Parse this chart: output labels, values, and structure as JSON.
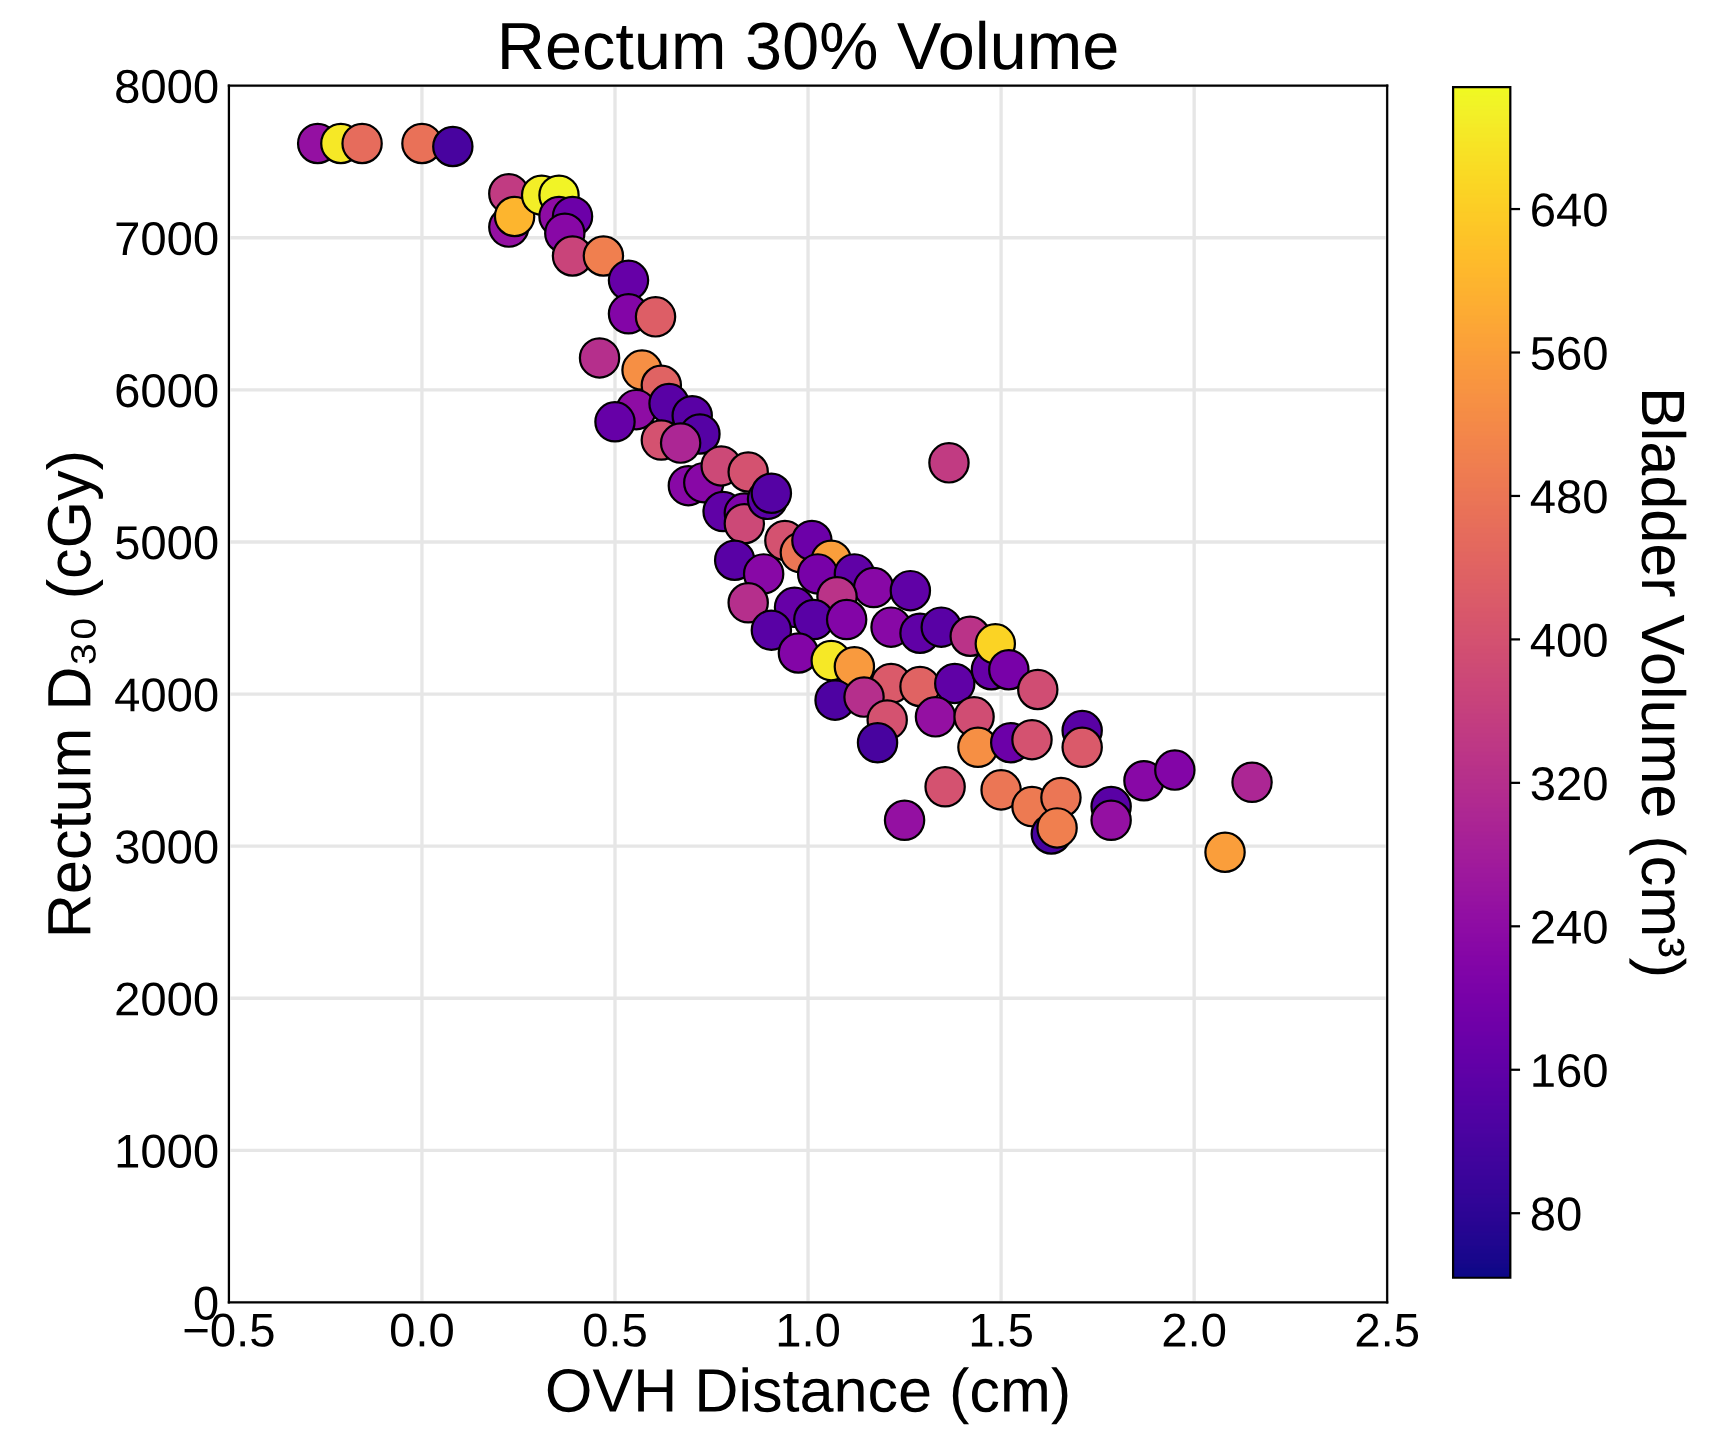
{
  "chart_data": {
    "type": "scatter",
    "title": "Rectum 30% Volume",
    "xlabel": "OVH Distance (cm)",
    "ylabel": "Rectum D₃₀ (cGy)",
    "clabel": "Bladder Volume (cm³)",
    "x": [
      -0.27,
      -0.21,
      -0.155,
      0.0,
      0.08,
      0.225,
      0.225,
      0.24,
      0.31,
      0.355,
      0.355,
      0.39,
      0.37,
      0.39,
      0.47,
      0.535,
      0.535,
      0.605,
      0.46,
      0.57,
      0.62,
      0.555,
      0.5,
      0.64,
      0.62,
      0.69,
      0.7,
      0.72,
      0.67,
      0.73,
      0.775,
      0.845,
      0.78,
      0.835,
      0.835,
      0.895,
      0.905,
      1.365,
      0.81,
      0.885,
      0.94,
      0.98,
      1.01,
      1.06,
      1.025,
      1.12,
      1.17,
      1.265,
      1.075,
      0.845,
      0.965,
      1.015,
      1.1,
      1.215,
      1.29,
      1.345,
      1.42,
      0.905,
      0.975,
      1.06,
      1.12,
      1.215,
      1.29,
      1.07,
      1.145,
      1.205,
      1.18,
      1.38,
      1.475,
      1.33,
      1.43,
      1.485,
      1.52,
      1.595,
      1.44,
      1.525,
      1.58,
      1.71,
      1.71,
      1.355,
      1.25,
      1.5,
      1.58,
      1.655,
      1.63,
      1.645,
      1.785,
      1.785,
      1.87,
      1.95,
      2.15,
      2.08
    ],
    "values": [
      7620,
      7620,
      7620,
      7620,
      7600,
      7290,
      7070,
      7140,
      7280,
      7280,
      7140,
      7140,
      7030,
      6880,
      6880,
      6720,
      6500,
      6480,
      6210,
      6130,
      6030,
      5870,
      5790,
      5910,
      5670,
      5370,
      5830,
      5710,
      5650,
      5390,
      5500,
      5460,
      5200,
      5190,
      5120,
      5280,
      5320,
      5520,
      4880,
      4790,
      5010,
      4930,
      5010,
      4880,
      4790,
      4790,
      4700,
      4680,
      4640,
      4600,
      4570,
      4490,
      4490,
      4440,
      4400,
      4440,
      4380,
      4420,
      4270,
      4220,
      4180,
      4070,
      4050,
      3960,
      3980,
      3830,
      3680,
      4070,
      4160,
      3850,
      3850,
      4330,
      4160,
      4030,
      3650,
      3680,
      3700,
      3760,
      3650,
      3390,
      3170,
      3370,
      3260,
      3320,
      3080,
      3120,
      3260,
      3170,
      3430,
      3500,
      3420,
      2960
    ],
    "cvalues": [
      250,
      680,
      460,
      470,
      120,
      350,
      250,
      600,
      690,
      700,
      240,
      180,
      230,
      370,
      500,
      170,
      220,
      430,
      320,
      530,
      440,
      240,
      170,
      150,
      400,
      230,
      150,
      140,
      300,
      230,
      380,
      400,
      160,
      210,
      380,
      150,
      140,
      350,
      150,
      230,
      400,
      480,
      180,
      560,
      200,
      160,
      230,
      160,
      330,
      320,
      170,
      150,
      220,
      230,
      160,
      150,
      330,
      150,
      220,
      680,
      550,
      420,
      440,
      130,
      320,
      400,
      120,
      160,
      170,
      250,
      390,
      650,
      200,
      390,
      530,
      180,
      400,
      150,
      420,
      400,
      250,
      480,
      490,
      480,
      120,
      500,
      150,
      250,
      230,
      220,
      300,
      560
    ],
    "clim": [
      44,
      708
    ],
    "cticks": [
      80,
      160,
      240,
      320,
      400,
      480,
      560,
      640
    ],
    "xlim": [
      -0.5,
      2.5
    ],
    "xticks": [
      {
        "value": -0.5,
        "label": "−0.5"
      },
      {
        "value": 0.0,
        "label": "0.0"
      },
      {
        "value": 0.5,
        "label": "0.5"
      },
      {
        "value": 1.0,
        "label": "1.0"
      },
      {
        "value": 1.5,
        "label": "1.5"
      },
      {
        "value": 2.0,
        "label": "2.0"
      },
      {
        "value": 2.5,
        "label": "2.5"
      }
    ],
    "ylim": [
      0,
      8000
    ],
    "yticks": [
      0,
      1000,
      2000,
      3000,
      4000,
      5000,
      6000,
      7000,
      8000
    ],
    "grid": true,
    "marker": "circle"
  }
}
